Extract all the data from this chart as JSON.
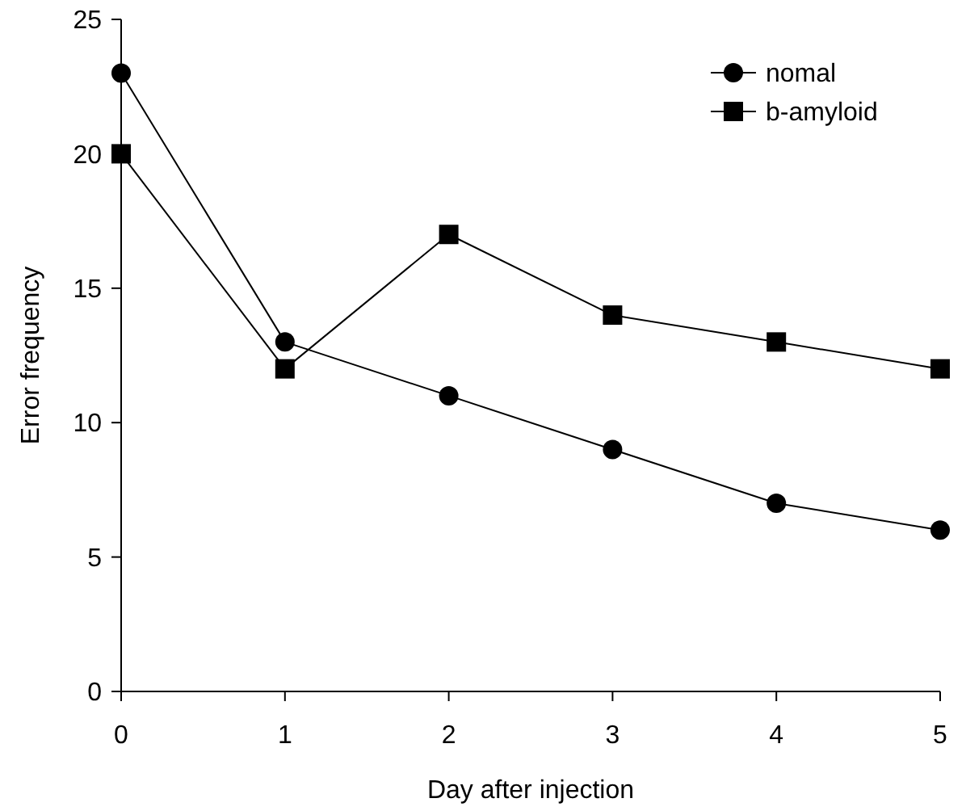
{
  "chart_data": {
    "type": "line",
    "xlabel": "Day after injection",
    "ylabel": "Error frequency",
    "x": [
      0,
      1,
      2,
      3,
      4,
      5
    ],
    "series": [
      {
        "name": "nomal",
        "color": "#000000",
        "marker": "circle",
        "values": [
          23,
          13,
          11,
          9,
          7,
          6
        ]
      },
      {
        "name": "b-amyloid",
        "color": "#000000",
        "marker": "square",
        "values": [
          20,
          12,
          17,
          14,
          13,
          12
        ]
      }
    ],
    "xlim": [
      0,
      5
    ],
    "xticks": [
      0,
      1,
      2,
      3,
      4,
      5
    ],
    "ylim": [
      0,
      25
    ],
    "yticks": [
      0,
      5,
      10,
      15,
      20,
      25
    ],
    "grid": false,
    "legend": "top right",
    "line_style": "solid"
  }
}
